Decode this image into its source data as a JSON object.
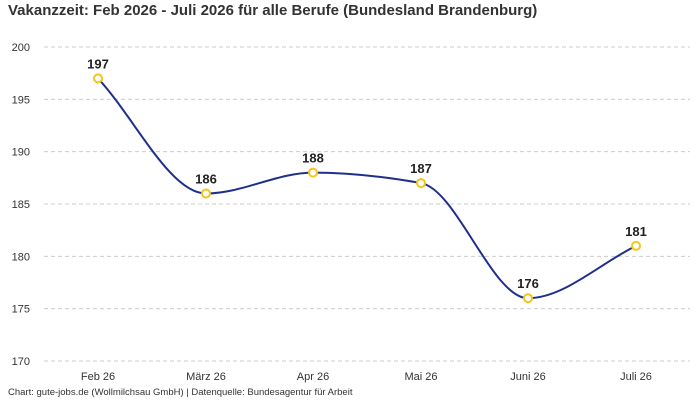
{
  "title": "Vakanzzeit: Feb 2026 - Juli 2026 für alle Berufe (Bundesland Brandenburg)",
  "footer": "Chart: gute-jobs.de (Wollmilchsau GmbH) | Datenquelle: Bundesagentur für Arbeit",
  "colors": {
    "line": "#1f2f8a",
    "marker": "#f5c518",
    "grid": "#cccccc"
  },
  "chart_data": {
    "type": "line",
    "title": "Vakanzzeit: Feb 2026 - Juli 2026 für alle Berufe (Bundesland Brandenburg)",
    "categories": [
      "Feb 26",
      "März 26",
      "Apr 26",
      "Mai 26",
      "Juni 26",
      "Juli 26"
    ],
    "series": [
      {
        "values": [
          197,
          186,
          188,
          187,
          176,
          181
        ]
      }
    ],
    "data_labels": [
      "197",
      "186",
      "188",
      "187",
      "176",
      "181"
    ],
    "yticks": [
      170,
      175,
      180,
      185,
      190,
      195,
      200
    ],
    "ylim": [
      170,
      200
    ],
    "grid": true,
    "xlabel": "",
    "ylabel": ""
  }
}
